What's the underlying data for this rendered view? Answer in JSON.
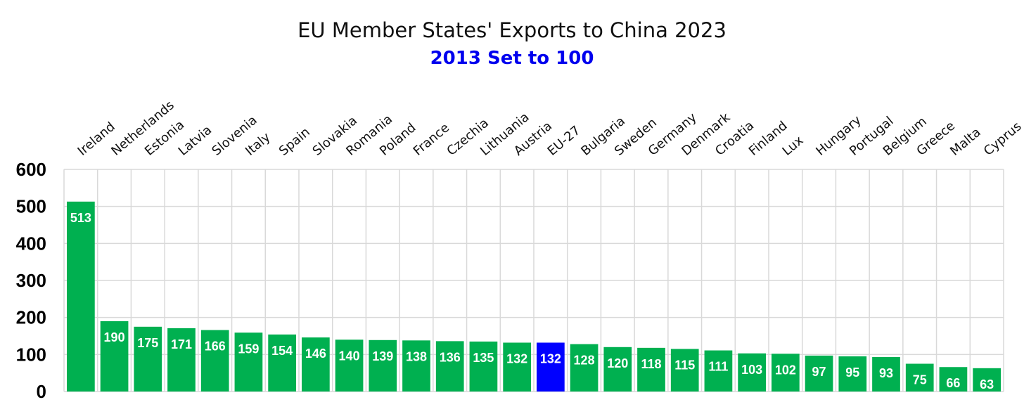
{
  "chart_data": {
    "type": "bar",
    "title": "EU Member States' Exports to China 2023",
    "subtitle": "2013 Set to 100",
    "xlabel": "",
    "ylabel": "",
    "ylim": [
      0,
      600
    ],
    "yticks": [
      0,
      100,
      200,
      300,
      400,
      500,
      600
    ],
    "grid": true,
    "legend": "none",
    "categories": [
      "Ireland",
      "Netherlands",
      "Estonia",
      "Latvia",
      "Slovenia",
      "Italy",
      "Spain",
      "Slovakia",
      "Romania",
      "Poland",
      "France",
      "Czechia",
      "Lithuania",
      "Austria",
      "EU-27",
      "Bulgaria",
      "Sweden",
      "Germany",
      "Denmark",
      "Croatia",
      "Finland",
      "Lux",
      "Hungary",
      "Portugal",
      "Belgium",
      "Greece",
      "Malta",
      "Cyprus"
    ],
    "values": [
      513,
      190,
      175,
      171,
      166,
      159,
      154,
      146,
      140,
      139,
      138,
      136,
      135,
      132,
      132,
      128,
      120,
      118,
      115,
      111,
      103,
      102,
      97,
      95,
      93,
      75,
      66,
      63
    ],
    "highlight_category": "EU-27",
    "colors": {
      "bar": "#00b050",
      "highlight": "#0000ff",
      "subtitle": "#0000ee",
      "grid": "#d9d9d9",
      "label": "#ffffff"
    }
  }
}
